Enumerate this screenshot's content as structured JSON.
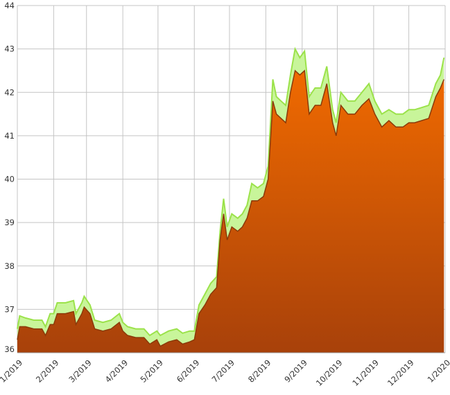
{
  "chart_data": {
    "type": "area",
    "title": "",
    "xlabel": "",
    "ylabel": "",
    "ylim": [
      36,
      44
    ],
    "yticks": [
      "36",
      "37",
      "38",
      "39",
      "40",
      "41",
      "42",
      "43",
      "44"
    ],
    "xlim": [
      "2019-01-01",
      "2020-01-01"
    ],
    "xticks": [
      {
        "date": "2019-01-01",
        "label": "1/2019"
      },
      {
        "date": "2019-02-01",
        "label": "2/2019"
      },
      {
        "date": "2019-03-01",
        "label": "3/2019"
      },
      {
        "date": "2019-04-01",
        "label": "4/2019"
      },
      {
        "date": "2019-05-01",
        "label": "5/2019"
      },
      {
        "date": "2019-06-01",
        "label": "6/2019"
      },
      {
        "date": "2019-07-01",
        "label": "7/2019"
      },
      {
        "date": "2019-08-01",
        "label": "8/2019"
      },
      {
        "date": "2019-09-01",
        "label": "9/2019"
      },
      {
        "date": "2019-10-01",
        "label": "10/2019"
      },
      {
        "date": "2019-11-01",
        "label": "11/2019"
      },
      {
        "date": "2019-12-01",
        "label": "12/2019"
      },
      {
        "date": "2020-01-01",
        "label": "1/2020"
      }
    ],
    "grid": true,
    "legend": "none",
    "colors": {
      "upper_fill": "#c8f59a",
      "upper_line": "#9be24a",
      "lower_top": "#f06a00",
      "lower_bottom": "#a8410a",
      "lower_line": "#8a3a0a",
      "grid": "#c4c4c4"
    },
    "x": [
      "2019-01-01",
      "2019-01-03",
      "2019-01-08",
      "2019-01-15",
      "2019-01-22",
      "2019-01-25",
      "2019-01-29",
      "2019-02-01",
      "2019-02-04",
      "2019-02-11",
      "2019-02-18",
      "2019-02-20",
      "2019-02-25",
      "2019-02-27",
      "2019-03-04",
      "2019-03-08",
      "2019-03-15",
      "2019-03-22",
      "2019-03-29",
      "2019-04-01",
      "2019-04-05",
      "2019-04-12",
      "2019-04-19",
      "2019-04-24",
      "2019-04-30",
      "2019-05-03",
      "2019-05-10",
      "2019-05-17",
      "2019-05-22",
      "2019-05-28",
      "2019-06-01",
      "2019-06-05",
      "2019-06-10",
      "2019-06-15",
      "2019-06-20",
      "2019-06-23",
      "2019-06-26",
      "2019-06-29",
      "2019-07-03",
      "2019-07-08",
      "2019-07-12",
      "2019-07-16",
      "2019-07-20",
      "2019-07-25",
      "2019-07-30",
      "2019-08-03",
      "2019-08-07",
      "2019-08-10",
      "2019-08-14",
      "2019-08-18",
      "2019-08-22",
      "2019-08-26",
      "2019-08-30",
      "2019-09-03",
      "2019-09-07",
      "2019-09-12",
      "2019-09-17",
      "2019-09-22",
      "2019-09-27",
      "2019-09-30",
      "2019-10-04",
      "2019-10-10",
      "2019-10-16",
      "2019-10-22",
      "2019-10-28",
      "2019-11-02",
      "2019-11-08",
      "2019-11-14",
      "2019-11-20",
      "2019-11-26",
      "2019-12-01",
      "2019-12-06",
      "2019-12-12",
      "2019-12-18",
      "2019-12-24",
      "2019-12-28",
      "2019-12-31"
    ],
    "series": [
      {
        "values": [
          36.55,
          36.85,
          36.8,
          36.75,
          36.75,
          36.6,
          36.9,
          36.9,
          37.15,
          37.15,
          37.2,
          36.9,
          37.15,
          37.3,
          37.1,
          36.75,
          36.7,
          36.75,
          36.9,
          36.7,
          36.6,
          36.55,
          36.55,
          36.4,
          36.5,
          36.4,
          36.5,
          36.55,
          36.45,
          36.5,
          36.5,
          37.1,
          37.35,
          37.6,
          37.75,
          38.8,
          39.55,
          38.9,
          39.2,
          39.1,
          39.2,
          39.4,
          39.9,
          39.8,
          39.9,
          40.3,
          42.3,
          41.9,
          41.8,
          41.7,
          42.4,
          43.0,
          42.8,
          42.95,
          41.9,
          42.1,
          42.1,
          42.6,
          41.6,
          41.3,
          42.0,
          41.8,
          41.8,
          42.0,
          42.2,
          41.8,
          41.5,
          41.6,
          41.5,
          41.5,
          41.6,
          41.6,
          41.65,
          41.7,
          42.2,
          42.4,
          42.8
        ]
      },
      {
        "values": [
          36.3,
          36.6,
          36.6,
          36.55,
          36.55,
          36.4,
          36.65,
          36.65,
          36.9,
          36.9,
          36.95,
          36.65,
          36.9,
          37.05,
          36.9,
          36.55,
          36.5,
          36.55,
          36.7,
          36.5,
          36.4,
          36.35,
          36.35,
          36.2,
          36.3,
          36.15,
          36.25,
          36.3,
          36.2,
          36.25,
          36.3,
          36.9,
          37.1,
          37.35,
          37.5,
          38.6,
          39.2,
          38.6,
          38.9,
          38.8,
          38.9,
          39.1,
          39.5,
          39.5,
          39.6,
          40.0,
          41.8,
          41.5,
          41.4,
          41.3,
          42.0,
          42.5,
          42.4,
          42.5,
          41.5,
          41.7,
          41.7,
          42.2,
          41.3,
          41.0,
          41.7,
          41.5,
          41.5,
          41.7,
          41.85,
          41.5,
          41.2,
          41.35,
          41.2,
          41.2,
          41.3,
          41.3,
          41.35,
          41.4,
          41.9,
          42.1,
          42.3
        ]
      }
    ]
  }
}
